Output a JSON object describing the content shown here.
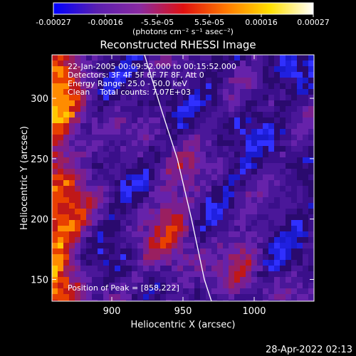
{
  "chart_data": {
    "type": "heatmap",
    "title": "Reconstructed RHESSI Image",
    "xlabel": "Heliocentric X (arcsec)",
    "ylabel": "Heliocentric Y (arcsec)",
    "xlim": [
      858,
      1042
    ],
    "ylim": [
      132,
      336
    ],
    "x_ticks": [
      900,
      950,
      1000
    ],
    "y_ticks": [
      150,
      200,
      250,
      300
    ],
    "colorbar": {
      "range": [
        -0.00027,
        0.00027
      ],
      "tick_labels": [
        "-0.00027",
        "-0.00016",
        "-5.5e-05",
        "5.5e-05",
        "0.00016",
        "0.00027"
      ],
      "unit_label": "(photons cm⁻² s⁻¹ asec⁻²)",
      "colors": [
        "#0000ff",
        "#5a1fb0",
        "#8a2aa0",
        "#e01010",
        "#ff7a00",
        "#ffe000",
        "#ffffff"
      ]
    },
    "annotations": [
      "22-Jan-2005 00:09:52.000 to 00:15:52.000",
      "Detectors: 3F 4F 5F 6F 7F 8F, Att 0",
      "Energy Range: 25.0 - 50.0 keV",
      "Clean    Total counts: 7.07E+03"
    ],
    "peak_label": "Position of Peak = [858,222]",
    "peak": [
      858,
      222
    ],
    "limb_curve": [
      [
        923,
        336
      ],
      [
        935,
        290
      ],
      [
        946,
        250
      ],
      [
        956,
        200
      ],
      [
        965,
        150
      ],
      [
        970,
        132
      ]
    ]
  },
  "footer": {
    "timestamp": "28-Apr-2022 02:13"
  }
}
